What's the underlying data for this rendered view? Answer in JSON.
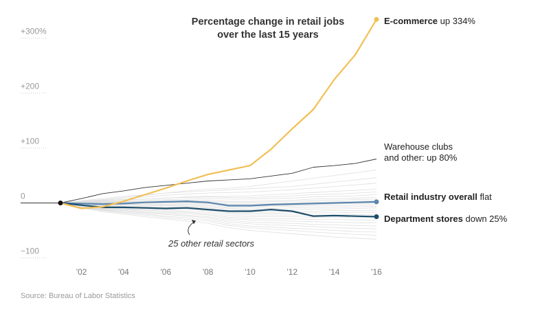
{
  "chart_data": {
    "type": "line",
    "title_lines": [
      "Percentage change in retail jobs",
      "over the last 15 years"
    ],
    "x_tick_labels": [
      "'02",
      "'04",
      "'06",
      "'08",
      "'10",
      "'12",
      "'14",
      "'16"
    ],
    "x_tick_values": [
      2002,
      2004,
      2006,
      2008,
      2010,
      2012,
      2014,
      2016
    ],
    "y_tick_labels": [
      "+300%",
      "+200",
      "+100",
      "0",
      "−100"
    ],
    "y_tick_values": [
      300,
      200,
      100,
      0,
      -100
    ],
    "xlim": [
      2001,
      2016
    ],
    "ylim": [
      -100,
      320
    ],
    "origin": {
      "x": 2001,
      "y": 0
    },
    "series": [
      {
        "name": "E-commerce",
        "key": "ecommerce",
        "color": "#f2bf55",
        "x": [
          2001,
          2002,
          2003,
          2004,
          2005,
          2006,
          2007,
          2008,
          2009,
          2010,
          2011,
          2012,
          2013,
          2014,
          2015,
          2016
        ],
        "values": [
          0,
          -10,
          -7,
          3,
          15,
          27,
          40,
          52,
          60,
          68,
          98,
          135,
          170,
          225,
          270,
          334
        ]
      },
      {
        "name": "Warehouse clubs and other",
        "key": "warehouse",
        "color": "#333333",
        "x": [
          2001,
          2002,
          2003,
          2004,
          2005,
          2006,
          2007,
          2008,
          2009,
          2010,
          2011,
          2012,
          2013,
          2014,
          2015,
          2016
        ],
        "values": [
          0,
          8,
          17,
          22,
          28,
          32,
          36,
          40,
          42,
          44,
          49,
          54,
          65,
          68,
          72,
          80
        ]
      },
      {
        "name": "Retail industry overall",
        "key": "overall",
        "color": "#5a86b0",
        "x": [
          2001,
          2002,
          2003,
          2004,
          2005,
          2006,
          2007,
          2008,
          2009,
          2010,
          2011,
          2012,
          2013,
          2014,
          2015,
          2016
        ],
        "values": [
          0,
          -1,
          -2,
          -1,
          1,
          2,
          3,
          1,
          -5,
          -5,
          -3,
          -2,
          -1,
          0,
          1,
          2
        ]
      },
      {
        "name": "Department stores",
        "key": "department",
        "color": "#1d4e6b",
        "x": [
          2001,
          2002,
          2003,
          2004,
          2005,
          2006,
          2007,
          2008,
          2009,
          2010,
          2011,
          2012,
          2013,
          2014,
          2015,
          2016
        ],
        "values": [
          0,
          -4,
          -8,
          -8,
          -9,
          -10,
          -9,
          -12,
          -15,
          -15,
          -12,
          -15,
          -24,
          -23,
          -24,
          -25
        ]
      }
    ],
    "other_series": [
      {
        "values": [
          0,
          3,
          6,
          10,
          14,
          18,
          22,
          25,
          27,
          30,
          35,
          40,
          45,
          50,
          55,
          60
        ]
      },
      {
        "values": [
          0,
          4,
          8,
          12,
          15,
          18,
          20,
          22,
          24,
          26,
          28,
          30,
          34,
          38,
          42,
          46
        ]
      },
      {
        "values": [
          0,
          2,
          5,
          8,
          11,
          14,
          16,
          18,
          19,
          20,
          22,
          24,
          27,
          30,
          33,
          36
        ]
      },
      {
        "values": [
          0,
          1,
          3,
          5,
          7,
          9,
          11,
          12,
          12,
          13,
          15,
          17,
          19,
          21,
          23,
          25
        ]
      },
      {
        "values": [
          0,
          2,
          4,
          6,
          7,
          9,
          10,
          11,
          10,
          10,
          11,
          13,
          15,
          16,
          18,
          20
        ]
      },
      {
        "values": [
          0,
          1,
          2,
          3,
          5,
          6,
          7,
          8,
          7,
          7,
          8,
          9,
          11,
          12,
          13,
          15
        ]
      },
      {
        "values": [
          0,
          1,
          2,
          2,
          3,
          4,
          5,
          5,
          3,
          3,
          4,
          5,
          7,
          8,
          9,
          10
        ]
      },
      {
        "values": [
          0,
          0,
          1,
          2,
          2,
          3,
          3,
          3,
          1,
          1,
          2,
          3,
          4,
          5,
          6,
          7
        ]
      },
      {
        "values": [
          0,
          1,
          1,
          1,
          2,
          2,
          2,
          1,
          -2,
          -2,
          -1,
          0,
          1,
          2,
          3,
          4
        ]
      },
      {
        "values": [
          0,
          0,
          0,
          1,
          1,
          1,
          1,
          0,
          -3,
          -3,
          -2,
          -1,
          0,
          0,
          1,
          2
        ]
      },
      {
        "values": [
          0,
          -1,
          -1,
          0,
          0,
          0,
          0,
          -1,
          -5,
          -6,
          -5,
          -4,
          -3,
          -2,
          -1,
          0
        ]
      },
      {
        "values": [
          0,
          -1,
          -2,
          -2,
          -2,
          -2,
          -2,
          -3,
          -8,
          -8,
          -7,
          -6,
          -5,
          -5,
          -4,
          -3
        ]
      },
      {
        "values": [
          0,
          -2,
          -3,
          -3,
          -3,
          -4,
          -4,
          -5,
          -10,
          -11,
          -10,
          -9,
          -8,
          -8,
          -7,
          -6
        ]
      },
      {
        "values": [
          0,
          -2,
          -4,
          -4,
          -5,
          -5,
          -6,
          -7,
          -12,
          -13,
          -13,
          -12,
          -11,
          -11,
          -10,
          -9
        ]
      },
      {
        "values": [
          0,
          -3,
          -5,
          -6,
          -7,
          -7,
          -8,
          -9,
          -15,
          -16,
          -16,
          -15,
          -15,
          -14,
          -14,
          -13
        ]
      },
      {
        "values": [
          0,
          -3,
          -6,
          -7,
          -8,
          -9,
          -10,
          -12,
          -18,
          -19,
          -19,
          -18,
          -18,
          -18,
          -17,
          -17
        ]
      },
      {
        "values": [
          0,
          -4,
          -7,
          -8,
          -10,
          -11,
          -12,
          -14,
          -20,
          -22,
          -22,
          -22,
          -22,
          -22,
          -21,
          -21
        ]
      },
      {
        "values": [
          0,
          -4,
          -8,
          -10,
          -12,
          -13,
          -15,
          -17,
          -23,
          -25,
          -25,
          -25,
          -26,
          -26,
          -26,
          -26
        ]
      },
      {
        "values": [
          0,
          -5,
          -9,
          -11,
          -13,
          -15,
          -17,
          -20,
          -26,
          -28,
          -29,
          -29,
          -30,
          -30,
          -31,
          -31
        ]
      },
      {
        "values": [
          0,
          -5,
          -10,
          -12,
          -15,
          -17,
          -19,
          -22,
          -29,
          -31,
          -32,
          -33,
          -34,
          -35,
          -36,
          -36
        ]
      },
      {
        "values": [
          0,
          -6,
          -11,
          -14,
          -17,
          -19,
          -22,
          -25,
          -32,
          -35,
          -36,
          -37,
          -39,
          -40,
          -41,
          -42
        ]
      },
      {
        "values": [
          0,
          -7,
          -12,
          -15,
          -18,
          -21,
          -24,
          -27,
          -35,
          -38,
          -40,
          -41,
          -43,
          -45,
          -46,
          -47
        ]
      },
      {
        "values": [
          0,
          -7,
          -13,
          -17,
          -20,
          -24,
          -27,
          -30,
          -38,
          -42,
          -44,
          -46,
          -48,
          -50,
          -52,
          -53
        ]
      },
      {
        "values": [
          0,
          -8,
          -14,
          -18,
          -22,
          -26,
          -30,
          -33,
          -41,
          -45,
          -48,
          -50,
          -53,
          -55,
          -57,
          -59
        ]
      },
      {
        "values": [
          0,
          -9,
          -16,
          -20,
          -25,
          -29,
          -33,
          -37,
          -45,
          -50,
          -53,
          -56,
          -59,
          -62,
          -64,
          -66
        ]
      }
    ],
    "labels": {
      "ecommerce": {
        "bold": "E-commerce",
        "rest": " up 334%"
      },
      "warehouse": {
        "line1": "Warehouse clubs",
        "line2": "and other: up 80%"
      },
      "overall": {
        "bold": "Retail industry overall",
        "rest": " flat"
      },
      "department": {
        "bold": "Department stores",
        "rest": " down 25%"
      }
    },
    "annotation": "25 other retail sectors",
    "source": "Source: Bureau of Labor Statistics",
    "grid": true
  }
}
